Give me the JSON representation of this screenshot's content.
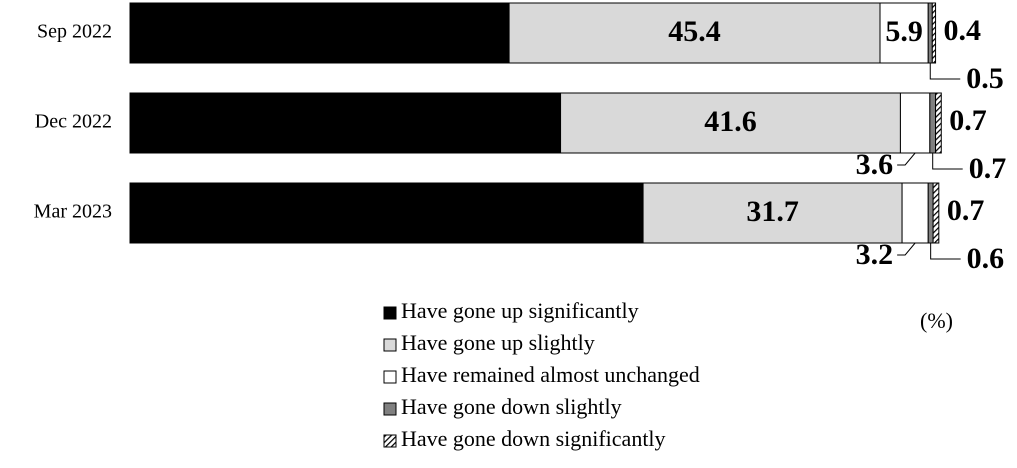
{
  "chart_data": {
    "type": "stacked-bar-horizontal",
    "unit_label": "(%)",
    "categories": [
      "Sep 2022",
      "Dec 2022",
      "Mar 2023"
    ],
    "xlim": [
      0,
      100
    ],
    "series": [
      {
        "name": "Have gone up significantly",
        "color": "#000000",
        "values": [
          46.4,
          52.7,
          62.8
        ]
      },
      {
        "name": "Have gone up slightly",
        "color": "#d9d9d9",
        "values": [
          45.4,
          41.6,
          31.7
        ]
      },
      {
        "name": "Have remained almost unchanged",
        "color": "#ffffff",
        "values": [
          5.9,
          3.6,
          3.2
        ]
      },
      {
        "name": "Have gone down slightly",
        "color": "#808080",
        "values": [
          0.5,
          0.7,
          0.6
        ]
      },
      {
        "name": "Have gone down significantly",
        "color": "hatch",
        "values": [
          0.4,
          0.7,
          0.7
        ]
      }
    ]
  }
}
